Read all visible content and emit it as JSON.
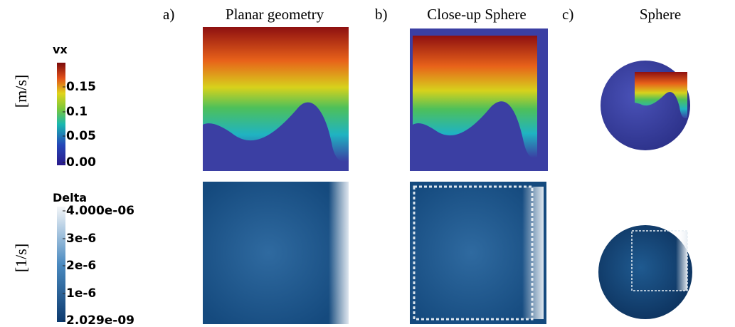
{
  "columns": [
    {
      "letter": "a)",
      "title": "Planar geometry"
    },
    {
      "letter": "b)",
      "title": "Close-up Sphere"
    },
    {
      "letter": "c)",
      "title": "Sphere"
    }
  ],
  "rows": [
    {
      "unit": "[m/s]",
      "colorbar": {
        "title": "vx",
        "ticks": [
          "0.15",
          "0.1",
          "0.05",
          "0.00"
        ]
      }
    },
    {
      "unit": "[1/s]",
      "colorbar": {
        "title": "Delta",
        "ticks": [
          "4.000e-06",
          "3e-6",
          "2e-6",
          "1e-6",
          "2.029e-09"
        ]
      }
    }
  ]
}
